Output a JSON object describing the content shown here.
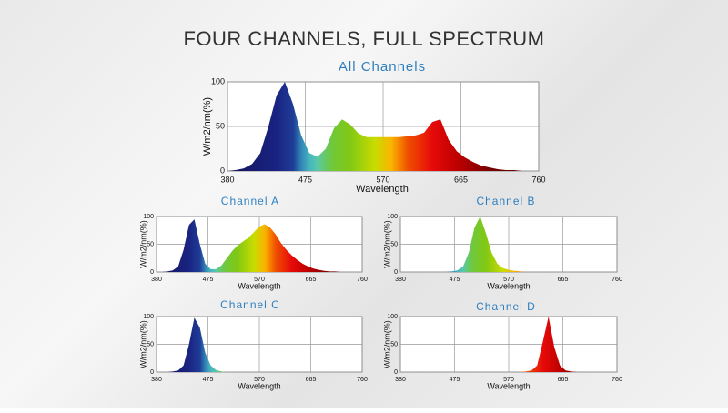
{
  "title": "FOUR CHANNELS, FULL SPECTRUM",
  "chart_data": [
    {
      "type": "area",
      "title": "All Channels",
      "x_label": "Wavelength",
      "y_label": "W/m2/nm(%)",
      "x": [
        380,
        390,
        400,
        410,
        420,
        430,
        440,
        450,
        460,
        470,
        480,
        490,
        500,
        510,
        520,
        530,
        540,
        550,
        560,
        570,
        580,
        590,
        600,
        610,
        620,
        630,
        640,
        650,
        660,
        670,
        680,
        690,
        700,
        710,
        720,
        730,
        740,
        750,
        760
      ],
      "values": [
        0,
        1,
        3,
        8,
        20,
        50,
        85,
        100,
        75,
        40,
        20,
        16,
        25,
        48,
        58,
        52,
        42,
        38,
        38,
        38,
        38,
        38,
        39,
        40,
        43,
        55,
        58,
        35,
        22,
        15,
        10,
        6,
        4,
        2,
        1,
        1,
        0,
        0,
        0
      ],
      "xlim": [
        380,
        760
      ],
      "xticks": [
        380,
        475,
        570,
        665,
        760
      ],
      "ylim": [
        0,
        100
      ],
      "yticks": [
        0,
        50,
        100
      ],
      "grid": true
    },
    {
      "type": "area",
      "title": "Channel A",
      "x_label": "Wavelength",
      "y_label": "W/m2/nm(%)",
      "x": [
        380,
        390,
        400,
        410,
        420,
        430,
        440,
        450,
        460,
        470,
        480,
        490,
        500,
        510,
        520,
        530,
        540,
        550,
        560,
        570,
        580,
        590,
        600,
        610,
        620,
        630,
        640,
        650,
        660,
        670,
        680,
        690,
        700,
        710,
        720,
        730,
        740,
        750,
        760
      ],
      "values": [
        0,
        0,
        1,
        3,
        10,
        40,
        85,
        95,
        50,
        15,
        5,
        5,
        12,
        25,
        38,
        48,
        55,
        62,
        72,
        82,
        86,
        80,
        68,
        52,
        40,
        30,
        22,
        15,
        10,
        6,
        4,
        2,
        1,
        1,
        0,
        0,
        0,
        0,
        0
      ],
      "xlim": [
        380,
        760
      ],
      "xticks": [
        380,
        475,
        570,
        665,
        760
      ],
      "ylim": [
        0,
        100
      ],
      "yticks": [
        0,
        50,
        100
      ],
      "grid": true
    },
    {
      "type": "area",
      "title": "Channel B",
      "x_label": "Wavelength",
      "y_label": "W/m2/nm(%)",
      "x": [
        380,
        390,
        400,
        410,
        420,
        430,
        440,
        450,
        460,
        470,
        480,
        490,
        500,
        510,
        520,
        530,
        540,
        550,
        560,
        570,
        580,
        590,
        600,
        610,
        620,
        630,
        640,
        650,
        660,
        670,
        680,
        690,
        700,
        710,
        720,
        730,
        740,
        750,
        760
      ],
      "values": [
        0,
        0,
        0,
        0,
        0,
        0,
        0,
        0,
        0,
        1,
        3,
        10,
        35,
        80,
        100,
        70,
        35,
        15,
        7,
        4,
        2,
        1,
        0,
        0,
        0,
        0,
        0,
        0,
        0,
        0,
        0,
        0,
        0,
        0,
        0,
        0,
        0,
        0,
        0
      ],
      "xlim": [
        380,
        760
      ],
      "xticks": [
        380,
        475,
        570,
        665,
        760
      ],
      "ylim": [
        0,
        100
      ],
      "yticks": [
        0,
        50,
        100
      ],
      "grid": true
    },
    {
      "type": "area",
      "title": "Channel C",
      "x_label": "Wavelength",
      "y_label": "W/m2/nm(%)",
      "x": [
        380,
        390,
        400,
        410,
        420,
        430,
        440,
        450,
        460,
        470,
        480,
        490,
        500,
        510,
        520,
        530,
        540,
        550,
        560,
        570,
        580,
        590,
        600,
        610,
        620,
        630,
        640,
        650,
        660,
        670,
        680,
        690,
        700,
        710,
        720,
        730,
        740,
        750,
        760
      ],
      "values": [
        0,
        0,
        0,
        1,
        3,
        12,
        50,
        98,
        80,
        35,
        12,
        4,
        1,
        0,
        0,
        0,
        0,
        0,
        0,
        0,
        0,
        0,
        0,
        0,
        0,
        0,
        0,
        0,
        0,
        0,
        0,
        0,
        0,
        0,
        0,
        0,
        0,
        0,
        0
      ],
      "xlim": [
        380,
        760
      ],
      "xticks": [
        380,
        475,
        570,
        665,
        760
      ],
      "ylim": [
        0,
        100
      ],
      "yticks": [
        0,
        50,
        100
      ],
      "grid": true
    },
    {
      "type": "area",
      "title": "Channel D",
      "x_label": "Wavelength",
      "y_label": "W/m2/nm(%)",
      "x": [
        380,
        390,
        400,
        410,
        420,
        430,
        440,
        450,
        460,
        470,
        480,
        490,
        500,
        510,
        520,
        530,
        540,
        550,
        560,
        570,
        580,
        590,
        600,
        610,
        620,
        630,
        640,
        650,
        660,
        670,
        680,
        690,
        700,
        710,
        720,
        730,
        740,
        750,
        760
      ],
      "values": [
        0,
        0,
        0,
        0,
        0,
        0,
        0,
        0,
        0,
        0,
        0,
        0,
        0,
        0,
        0,
        0,
        0,
        0,
        0,
        0,
        0,
        0,
        1,
        3,
        12,
        55,
        100,
        45,
        12,
        3,
        1,
        0,
        0,
        0,
        0,
        0,
        0,
        0,
        0
      ],
      "xlim": [
        380,
        760
      ],
      "xticks": [
        380,
        475,
        570,
        665,
        760
      ],
      "ylim": [
        0,
        100
      ],
      "yticks": [
        0,
        50,
        100
      ],
      "grid": true
    }
  ]
}
